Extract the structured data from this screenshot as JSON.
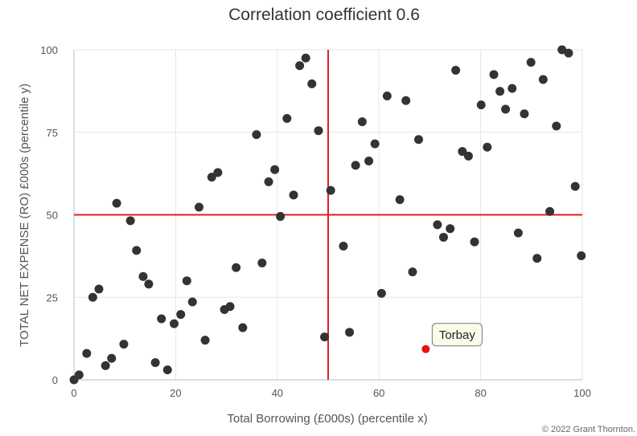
{
  "chart_data": {
    "type": "scatter",
    "title": "Correlation coefficient 0.6",
    "xlabel": "Total Borrowing (£000s) (percentile x)",
    "ylabel": "TOTAL NET EXPENSE (RO) £000s (percentile y)",
    "xlim": [
      0,
      100
    ],
    "ylim": [
      0,
      100
    ],
    "xticks": [
      0,
      20,
      40,
      60,
      80,
      100
    ],
    "yticks": [
      0,
      25,
      50,
      75,
      100
    ],
    "grid": true,
    "reference_lines": [
      {
        "orientation": "vertical",
        "value": 50,
        "color": "#e02020"
      },
      {
        "orientation": "horizontal",
        "value": 50,
        "color": "#e02020"
      }
    ],
    "series": [
      {
        "color": "#333333",
        "points": [
          [
            0.0,
            0.0
          ],
          [
            1.0,
            1.5
          ],
          [
            2.5,
            8.0
          ],
          [
            3.7,
            25.0
          ],
          [
            4.9,
            27.5
          ],
          [
            6.2,
            4.3
          ],
          [
            7.4,
            6.5
          ],
          [
            8.4,
            53.5
          ],
          [
            9.8,
            10.8
          ],
          [
            11.1,
            48.2
          ],
          [
            12.3,
            39.2
          ],
          [
            13.6,
            31.3
          ],
          [
            14.7,
            29.0
          ],
          [
            16.0,
            5.2
          ],
          [
            17.2,
            18.5
          ],
          [
            18.4,
            3.0
          ],
          [
            19.7,
            17.0
          ],
          [
            21.0,
            19.8
          ],
          [
            22.2,
            30.0
          ],
          [
            23.3,
            23.6
          ],
          [
            24.6,
            52.3
          ],
          [
            25.8,
            12.0
          ],
          [
            27.1,
            61.4
          ],
          [
            28.3,
            62.8
          ],
          [
            29.6,
            21.3
          ],
          [
            30.7,
            22.2
          ],
          [
            31.9,
            34.0
          ],
          [
            33.2,
            15.8
          ],
          [
            35.9,
            74.3
          ],
          [
            37.0,
            35.4
          ],
          [
            38.3,
            60.0
          ],
          [
            39.5,
            63.7
          ],
          [
            40.6,
            49.5
          ],
          [
            41.9,
            79.2
          ],
          [
            43.2,
            56.0
          ],
          [
            44.4,
            95.2
          ],
          [
            45.6,
            97.5
          ],
          [
            46.8,
            89.7
          ],
          [
            48.1,
            75.5
          ],
          [
            49.3,
            13.0
          ],
          [
            50.5,
            57.4
          ],
          [
            53.0,
            40.5
          ],
          [
            54.2,
            14.4
          ],
          [
            55.4,
            65.0
          ],
          [
            56.7,
            78.2
          ],
          [
            58.0,
            66.3
          ],
          [
            59.2,
            71.5
          ],
          [
            60.5,
            26.2
          ],
          [
            61.6,
            86.0
          ],
          [
            64.1,
            54.6
          ],
          [
            65.3,
            84.6
          ],
          [
            66.6,
            32.7
          ],
          [
            67.8,
            72.8
          ],
          [
            71.5,
            47.0
          ],
          [
            72.7,
            43.2
          ],
          [
            74.0,
            45.8
          ],
          [
            75.1,
            93.8
          ],
          [
            76.4,
            69.2
          ],
          [
            77.6,
            67.8
          ],
          [
            78.8,
            41.8
          ],
          [
            80.1,
            83.3
          ],
          [
            81.3,
            70.5
          ],
          [
            82.6,
            92.5
          ],
          [
            83.8,
            87.4
          ],
          [
            84.9,
            82.0
          ],
          [
            86.2,
            88.3
          ],
          [
            87.4,
            44.5
          ],
          [
            88.6,
            80.6
          ],
          [
            89.9,
            96.2
          ],
          [
            91.1,
            36.8
          ],
          [
            92.3,
            91.0
          ],
          [
            93.6,
            51.0
          ],
          [
            94.9,
            76.9
          ],
          [
            96.0,
            100.0
          ],
          [
            97.3,
            99.0
          ],
          [
            98.6,
            58.6
          ],
          [
            99.8,
            37.6
          ]
        ]
      },
      {
        "color": "#ee1111",
        "points": [
          [
            69.2,
            9.3
          ]
        ]
      }
    ],
    "annotations": [
      {
        "text": "Torbay",
        "x": 69.2,
        "y": 9.3
      }
    ]
  },
  "footer": {
    "copyright": "© 2022 Grant Thornton."
  }
}
